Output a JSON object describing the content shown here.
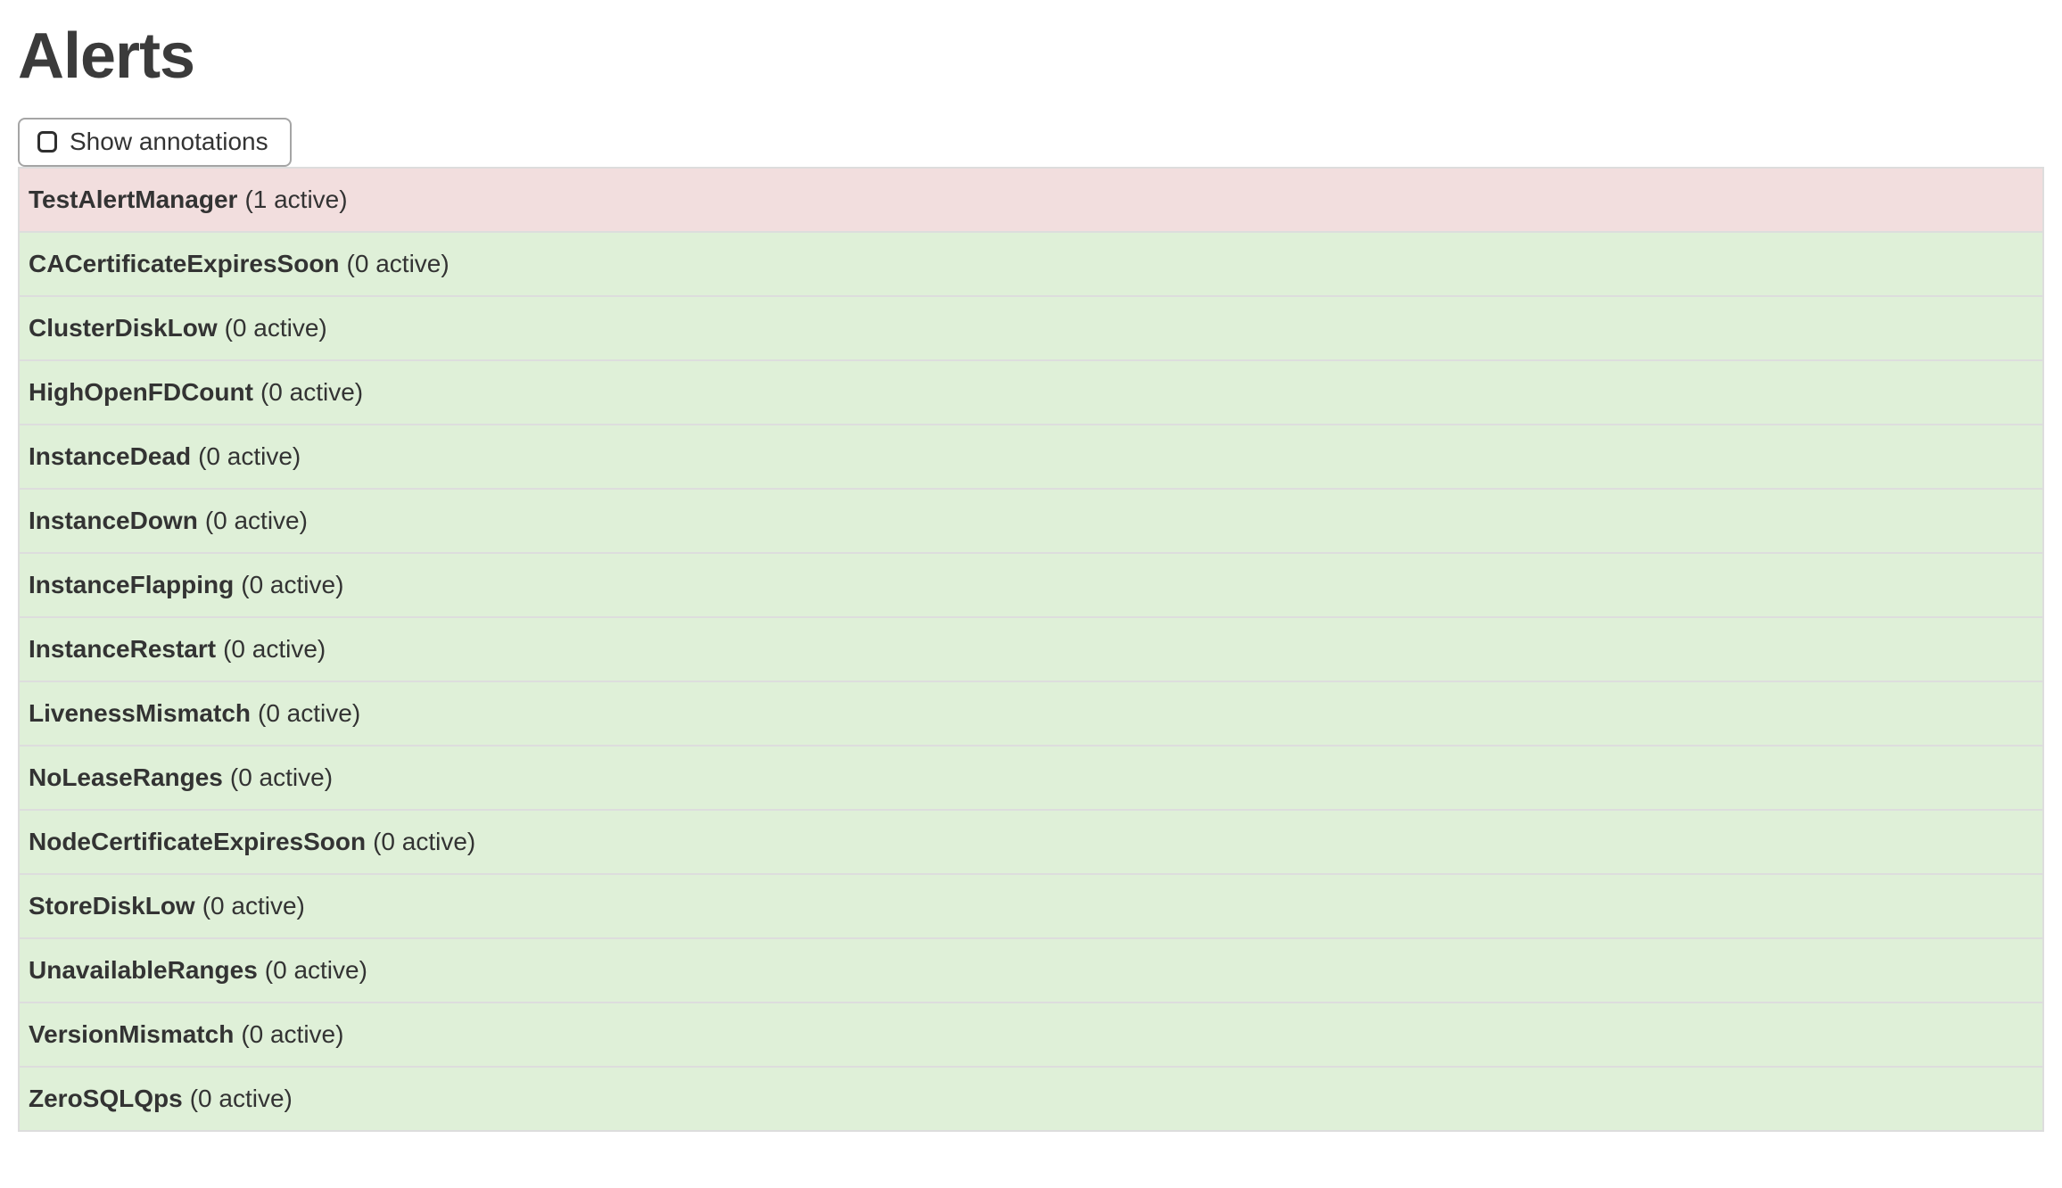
{
  "header": {
    "title": "Alerts"
  },
  "toolbar": {
    "show_annotations_label": "Show annotations",
    "checkbox_checked": false
  },
  "alerts": [
    {
      "name": "TestAlertManager",
      "count_label": "(1 active)",
      "state": "active"
    },
    {
      "name": "CACertificateExpiresSoon",
      "count_label": "(0 active)",
      "state": "inactive"
    },
    {
      "name": "ClusterDiskLow",
      "count_label": "(0 active)",
      "state": "inactive"
    },
    {
      "name": "HighOpenFDCount",
      "count_label": "(0 active)",
      "state": "inactive"
    },
    {
      "name": "InstanceDead",
      "count_label": "(0 active)",
      "state": "inactive"
    },
    {
      "name": "InstanceDown",
      "count_label": "(0 active)",
      "state": "inactive"
    },
    {
      "name": "InstanceFlapping",
      "count_label": "(0 active)",
      "state": "inactive"
    },
    {
      "name": "InstanceRestart",
      "count_label": "(0 active)",
      "state": "inactive"
    },
    {
      "name": "LivenessMismatch",
      "count_label": "(0 active)",
      "state": "inactive"
    },
    {
      "name": "NoLeaseRanges",
      "count_label": "(0 active)",
      "state": "inactive"
    },
    {
      "name": "NodeCertificateExpiresSoon",
      "count_label": "(0 active)",
      "state": "inactive"
    },
    {
      "name": "StoreDiskLow",
      "count_label": "(0 active)",
      "state": "inactive"
    },
    {
      "name": "UnavailableRanges",
      "count_label": "(0 active)",
      "state": "inactive"
    },
    {
      "name": "VersionMismatch",
      "count_label": "(0 active)",
      "state": "inactive"
    },
    {
      "name": "ZeroSQLQps",
      "count_label": "(0 active)",
      "state": "inactive"
    }
  ],
  "colors": {
    "active_row_bg": "#f2dede",
    "inactive_row_bg": "#dff0d8",
    "row_border": "#dddddd",
    "text": "#333333",
    "button_border": "#a5a5a5"
  }
}
